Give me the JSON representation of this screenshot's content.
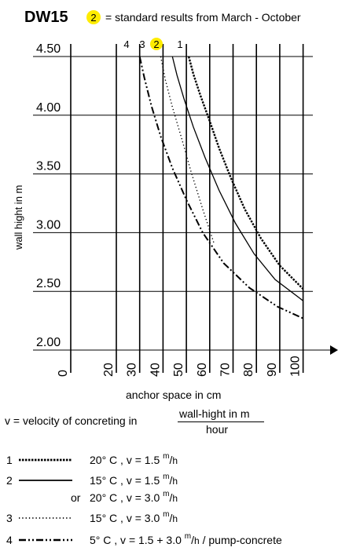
{
  "header": {
    "model": "DW15",
    "badge": "2",
    "text": "= standard results from March - October"
  },
  "chart_data": {
    "type": "line",
    "xlabel": "anchor space in cm",
    "ylabel": "wall hight in m",
    "x_ticks": [
      "0",
      "20",
      "30",
      "40",
      "50",
      "60",
      "70",
      "80",
      "90",
      "100"
    ],
    "y_ticks": [
      "4.50",
      "4.00",
      "3.50",
      "3.00",
      "2.50",
      "2.00"
    ],
    "ylim": [
      2.0,
      4.5
    ],
    "grid": true,
    "curve_labels": [
      "4",
      "3",
      "2",
      "1"
    ],
    "series": [
      {
        "name": "1",
        "style": "dense-dash",
        "x": [
          51,
          53,
          56,
          60,
          64,
          69,
          75,
          82,
          90,
          100
        ],
        "y": [
          4.5,
          4.35,
          4.17,
          3.95,
          3.72,
          3.47,
          3.2,
          2.95,
          2.72,
          2.52
        ]
      },
      {
        "name": "2",
        "style": "solid",
        "x": [
          44,
          46,
          49,
          53,
          58,
          64,
          71,
          79,
          88,
          100
        ],
        "y": [
          4.5,
          4.34,
          4.14,
          3.9,
          3.64,
          3.36,
          3.08,
          2.82,
          2.6,
          2.42
        ]
      },
      {
        "name": "3",
        "style": "dotted",
        "x": [
          39,
          41,
          44,
          48,
          52,
          57,
          62
        ],
        "y": [
          4.5,
          4.3,
          4.07,
          3.8,
          3.52,
          3.2,
          2.9
        ]
      },
      {
        "name": "4",
        "style": "dash-dot-dot",
        "x": [
          30,
          32,
          35,
          39,
          44,
          50,
          57,
          66,
          77,
          89,
          100
        ],
        "y": [
          4.5,
          4.32,
          4.08,
          3.82,
          3.55,
          3.28,
          3.0,
          2.74,
          2.53,
          2.37,
          2.27
        ]
      }
    ]
  },
  "velocity": {
    "prefix": "v = velocity of concreting in",
    "numerator": "wall-hight in m",
    "denominator": "hour"
  },
  "legend": [
    {
      "num": "1",
      "style": "dense-dash",
      "line1": "20° C , v = 1.5",
      "unit": "h",
      "sup": "m",
      "suffix": ""
    },
    {
      "num": "2",
      "style": "solid",
      "line1": "15° C , v = 1.5",
      "unit": "h",
      "sup": "m",
      "suffix": ""
    },
    {
      "num": "",
      "style": "none",
      "or": "or",
      "line1": "20° C , v = 3.0",
      "unit": "h",
      "sup": "m",
      "suffix": ""
    },
    {
      "num": "3",
      "style": "dotted",
      "line1": "15° C , v = 3.0",
      "unit": "h",
      "sup": "m",
      "suffix": ""
    },
    {
      "num": "4",
      "style": "dash-dot-dot",
      "line1": "5° C , v = 1.5 + 3.0",
      "unit": "h",
      "sup": "m",
      "suffix": "/ pump-concrete"
    }
  ]
}
